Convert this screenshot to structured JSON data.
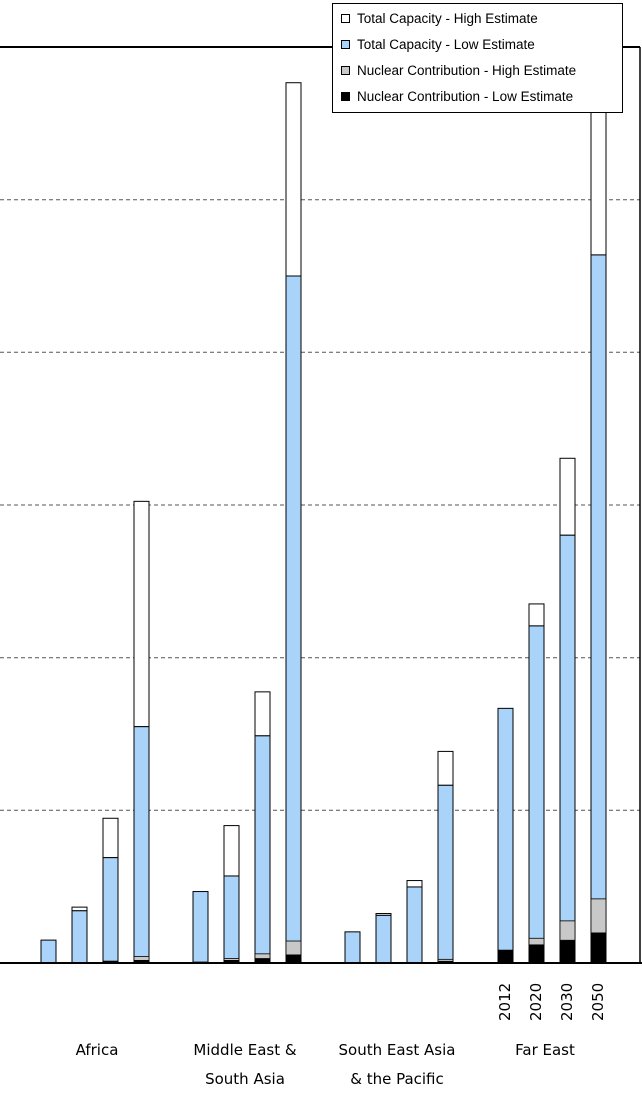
{
  "chart_data": {
    "type": "bar",
    "stacked": true,
    "years": [
      "2012",
      "2020",
      "2030",
      "2050"
    ],
    "regions": [
      {
        "label_line1": "Africa",
        "label_line2": ""
      },
      {
        "label_line1": "Middle East &",
        "label_line2": "South Asia"
      },
      {
        "label_line1": "South East Asia",
        "label_line2": "& the Pacific"
      },
      {
        "label_line1": "Far East",
        "label_line2": ""
      }
    ],
    "ylim": [
      0,
      1000
    ],
    "y_gridlines": [
      166.7,
      333.3,
      500,
      666.7,
      833.3
    ],
    "grid": "dashed horizontal",
    "legend_position": "top-right",
    "series": [
      {
        "name": "Total Capacity - High Estimate",
        "color": "#ffffff"
      },
      {
        "name": "Total Capacity - Low Estimate",
        "color": "#aad3f9"
      },
      {
        "name": "Nuclear Contribution - High Estimate",
        "color": "#c8c8c8"
      },
      {
        "name": "Nuclear Contribution - Low Estimate",
        "color": "#000000"
      }
    ],
    "bars": [
      {
        "region": "Africa",
        "year": "2012",
        "total_low": 25,
        "total_high": 25,
        "nuclear_low": 0,
        "nuclear_high": 0
      },
      {
        "region": "Africa",
        "year": "2020",
        "total_low": 57,
        "total_high": 61,
        "nuclear_low": 0,
        "nuclear_high": 0
      },
      {
        "region": "Africa",
        "year": "2030",
        "total_low": 115,
        "total_high": 158,
        "nuclear_low": 2,
        "nuclear_high": 2
      },
      {
        "region": "Africa",
        "year": "2050",
        "total_low": 258,
        "total_high": 504,
        "nuclear_low": 3,
        "nuclear_high": 7
      },
      {
        "region": "Middle East & South Asia",
        "year": "2012",
        "total_low": 78,
        "total_high": 78,
        "nuclear_low": 1,
        "nuclear_high": 1
      },
      {
        "region": "Middle East & South Asia",
        "year": "2020",
        "total_low": 95,
        "total_high": 150,
        "nuclear_low": 3,
        "nuclear_high": 5
      },
      {
        "region": "Middle East & South Asia",
        "year": "2030",
        "total_low": 248,
        "total_high": 296,
        "nuclear_low": 5,
        "nuclear_high": 10
      },
      {
        "region": "Middle East & South Asia",
        "year": "2050",
        "total_low": 750,
        "total_high": 961,
        "nuclear_low": 9,
        "nuclear_high": 24
      },
      {
        "region": "South East Asia & the Pacific",
        "year": "2012",
        "total_low": 34,
        "total_high": 34,
        "nuclear_low": 0,
        "nuclear_high": 0
      },
      {
        "region": "South East Asia & the Pacific",
        "year": "2020",
        "total_low": 52,
        "total_high": 54,
        "nuclear_low": 0,
        "nuclear_high": 0
      },
      {
        "region": "South East Asia & the Pacific",
        "year": "2030",
        "total_low": 83,
        "total_high": 90,
        "nuclear_low": 0,
        "nuclear_high": 0
      },
      {
        "region": "South East Asia & the Pacific",
        "year": "2050",
        "total_low": 194,
        "total_high": 231,
        "nuclear_low": 2,
        "nuclear_high": 4
      },
      {
        "region": "Far East",
        "year": "2012",
        "total_low": 278,
        "total_high": 278,
        "nuclear_low": 14,
        "nuclear_high": 14
      },
      {
        "region": "Far East",
        "year": "2020",
        "total_low": 368,
        "total_high": 392,
        "nuclear_low": 20,
        "nuclear_high": 27
      },
      {
        "region": "Far East",
        "year": "2030",
        "total_low": 467,
        "total_high": 551,
        "nuclear_low": 25,
        "nuclear_high": 46
      },
      {
        "region": "Far East",
        "year": "2050",
        "total_low": 773,
        "total_high": 930,
        "nuclear_low": 33,
        "nuclear_high": 70
      }
    ],
    "title": "",
    "xlabel": "",
    "ylabel": ""
  }
}
